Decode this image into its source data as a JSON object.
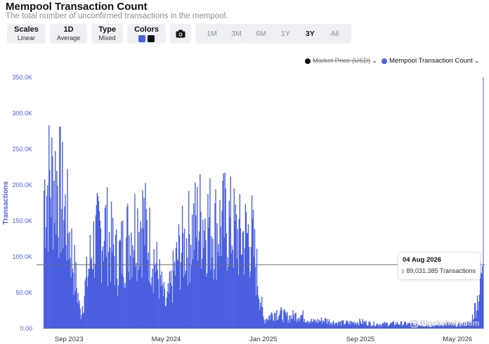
{
  "header": {
    "title": "Mempool Transaction Count",
    "subtitle": "The total number of unconfirmed transactions in the mempool."
  },
  "toolbar": {
    "scales": {
      "label": "Scales",
      "value": "Linear"
    },
    "period": {
      "label": "1D",
      "value": "Average"
    },
    "type": {
      "label": "Type",
      "value": "Mixed"
    },
    "colors": {
      "label": "Colors",
      "swatches": [
        "#4a5fe0",
        "#111111"
      ]
    },
    "camera_icon": "camera-icon",
    "ranges": [
      "1M",
      "3M",
      "6M",
      "1Y",
      "3Y",
      "All"
    ],
    "active_range": "3Y"
  },
  "legend": {
    "price": {
      "label": "Market Price (USD)",
      "color": "#111111",
      "enabled": false
    },
    "count": {
      "label": "Mempool Transaction Count",
      "color": "#4a5fe0",
      "enabled": true
    }
  },
  "tooltip": {
    "date": "04 Aug 2026",
    "value": "89,031.385 Transactions",
    "color": "#4a5fe0"
  },
  "watermark": "Blockchain.com",
  "chart_data": {
    "type": "bar",
    "title": "Mempool Transaction Count",
    "ylabel": "Transactions",
    "xlabel": "",
    "ylim": [
      0,
      350000
    ],
    "yticks": [
      "0.00",
      "50.0K",
      "100.0K",
      "150.0K",
      "200.0K",
      "250.0K",
      "300.0K",
      "350.0K"
    ],
    "xticks": [
      "Sep 2023",
      "May 2024",
      "Jan 2025",
      "Sep 2025",
      "May 2026"
    ],
    "x_range": [
      "2023-08",
      "2026-08"
    ],
    "grid": "horizontal-none",
    "color": "#4a5fe0",
    "crosshair_value": 89031.385,
    "series": [
      {
        "x": [
          "2023-08",
          "2023-09",
          "2023-10",
          "2023-11",
          "2023-12",
          "2024-01",
          "2024-02",
          "2024-03",
          "2024-04",
          "2024-05",
          "2024-06",
          "2024-07",
          "2024-08",
          "2024-09",
          "2024-10",
          "2024-11",
          "2024-12",
          "2025-01",
          "2025-02",
          "2025-03",
          "2025-04",
          "2025-05",
          "2025-06",
          "2025-07",
          "2025-08",
          "2025-09",
          "2025-10",
          "2025-11",
          "2025-12",
          "2026-01",
          "2026-02",
          "2026-03",
          "2026-04",
          "2026-05",
          "2026-06",
          "2026-07",
          "2026-08"
        ],
        "values": [
          250000,
          270000,
          180000,
          25000,
          150000,
          180000,
          120000,
          170000,
          200000,
          130000,
          40000,
          130000,
          170000,
          200000,
          180000,
          190000,
          160000,
          170000,
          15000,
          30000,
          20000,
          25000,
          12000,
          15000,
          10000,
          10000,
          12000,
          8000,
          8000,
          9000,
          8000,
          6000,
          5000,
          8000,
          6000,
          10000,
          89031
        ]
      }
    ]
  }
}
